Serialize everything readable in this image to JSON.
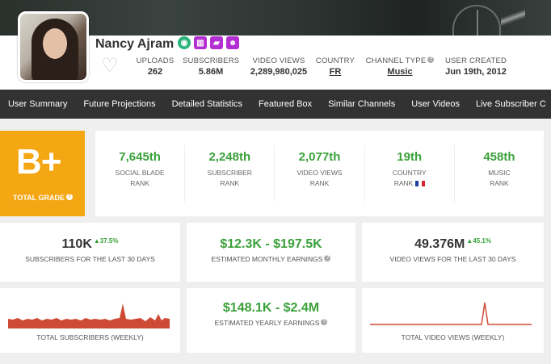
{
  "channel": {
    "name": "Nancy Ajram",
    "badges": [
      "verified-circle-icon",
      "chart-icon",
      "folder-icon",
      "group-icon"
    ]
  },
  "stats": [
    {
      "label": "UPLOADS",
      "value": "262"
    },
    {
      "label": "SUBSCRIBERS",
      "value": "5.86M"
    },
    {
      "label": "VIDEO VIEWS",
      "value": "2,289,980,025"
    },
    {
      "label": "COUNTRY",
      "value": "FR"
    },
    {
      "label": "CHANNEL TYPE",
      "value": "Music"
    },
    {
      "label": "USER CREATED",
      "value": "Jun 19th, 2012"
    }
  ],
  "nav": [
    "User Summary",
    "Future Projections",
    "Detailed Statistics",
    "Featured Box",
    "Similar Channels",
    "User Videos",
    "Live Subscriber C"
  ],
  "grade": {
    "letter": "B+",
    "label": "TOTAL GRADE"
  },
  "ranks": [
    {
      "num": "7,645th",
      "line1": "SOCIAL BLADE",
      "line2": "RANK"
    },
    {
      "num": "2,248th",
      "line1": "SUBSCRIBER",
      "line2": "RANK"
    },
    {
      "num": "2,077th",
      "line1": "VIDEO VIEWS",
      "line2": "RANK"
    },
    {
      "num": "19th",
      "line1": "COUNTRY",
      "line2": "RANK"
    },
    {
      "num": "458th",
      "line1": "MUSIC",
      "line2": "RANK"
    }
  ],
  "middle": {
    "subs": {
      "value": "110K",
      "change": "▲37.5%",
      "label": "SUBSCRIBERS FOR THE LAST 30 DAYS"
    },
    "monthly": {
      "value": "$12.3K  -  $197.5K",
      "label": "ESTIMATED MONTHLY EARNINGS"
    },
    "views": {
      "value": "49.376M",
      "change": "▲45.1%",
      "label": "VIDEO VIEWS FOR THE LAST 30 DAYS"
    }
  },
  "bottom": {
    "subs_chart_label": "TOTAL SUBSCRIBERS (WEEKLY)",
    "yearly": {
      "value": "$148.1K  -  $2.4M",
      "label": "ESTIMATED YEARLY EARNINGS"
    },
    "views_chart_label": "TOTAL VIDEO VIEWS (WEEKLY)"
  },
  "colors": {
    "accent_green": "#3aa13a",
    "grade_orange": "#f5a613",
    "nav_bg": "#323232",
    "badge_purple": "#b42fd2",
    "spark_red": "#cd4b35"
  }
}
